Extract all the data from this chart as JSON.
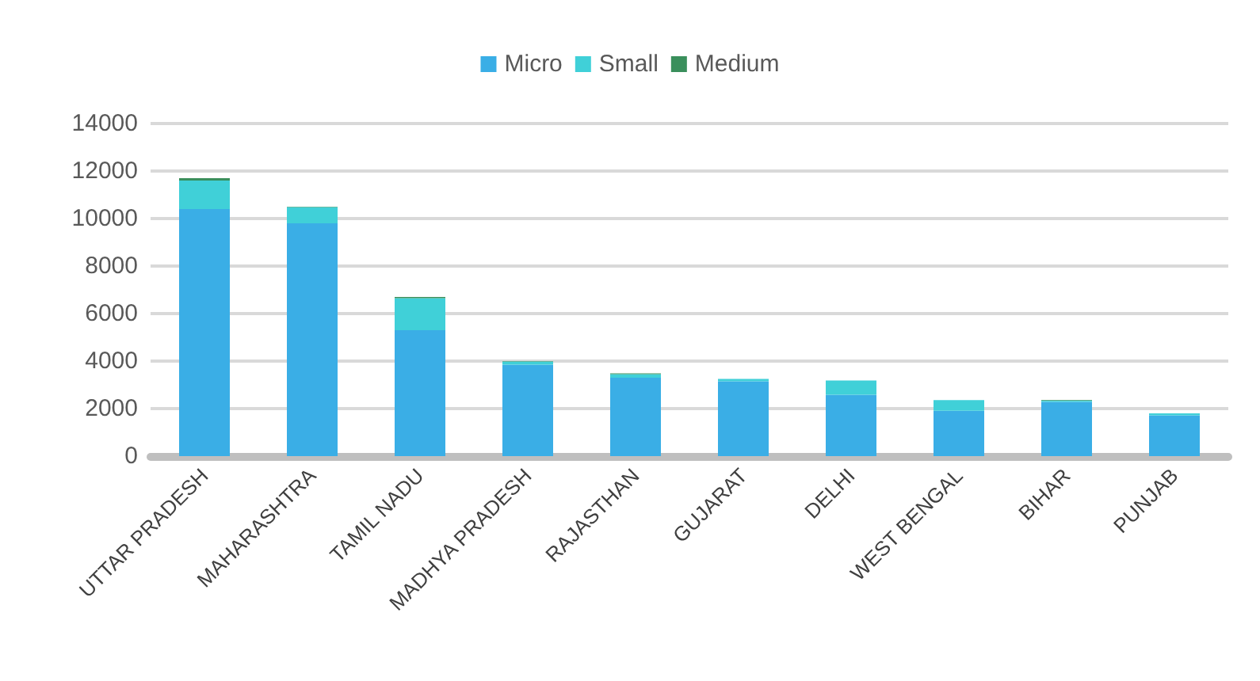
{
  "chart_data": {
    "type": "bar",
    "stacked": true,
    "categories": [
      "UTTAR PRADESH",
      "MAHARASHTRA",
      "TAMIL NADU",
      "MADHYA PRADESH",
      "RAJASTHAN",
      "GUJARAT",
      "DELHI",
      "WEST BENGAL",
      "BIHAR",
      "PUNJAB"
    ],
    "series": [
      {
        "name": "Micro",
        "color": "#3aaee6",
        "values": [
          10400,
          9800,
          5300,
          3850,
          3300,
          3150,
          2580,
          1910,
          2280,
          1720
        ]
      },
      {
        "name": "Small",
        "color": "#40d0d8",
        "values": [
          1200,
          680,
          1350,
          130,
          150,
          100,
          600,
          450,
          50,
          80
        ]
      },
      {
        "name": "Medium",
        "color": "#3a8f5c",
        "values": [
          100,
          20,
          50,
          20,
          30,
          null,
          null,
          null,
          30,
          null
        ]
      }
    ],
    "ylim": [
      0,
      14000
    ],
    "yticks": [
      0,
      2000,
      4000,
      6000,
      8000,
      10000,
      12000,
      14000
    ],
    "grid": "y",
    "legend": "top"
  }
}
